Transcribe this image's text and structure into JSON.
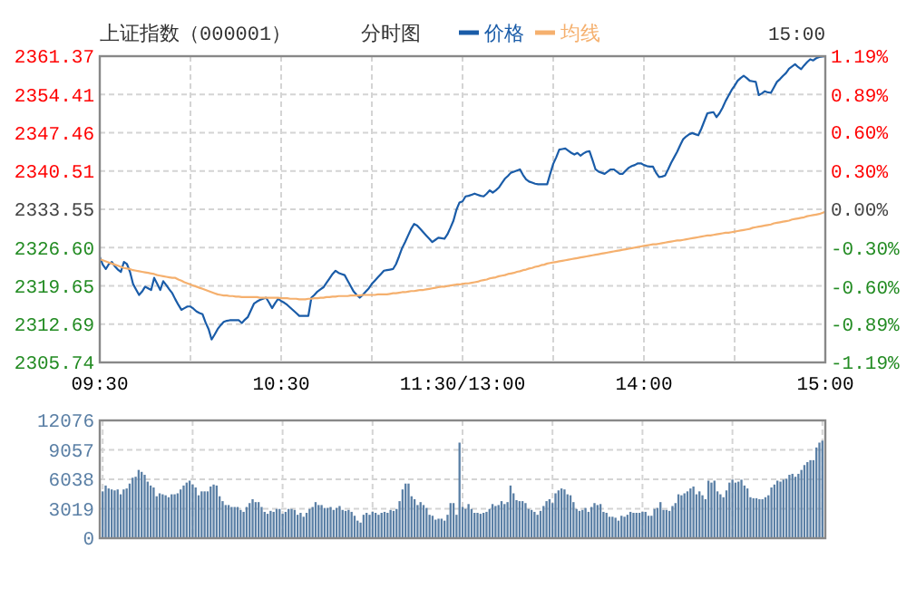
{
  "chart_data": [
    {
      "type": "line",
      "title": "上证指数（000001）",
      "subtitle": "分时图",
      "annotations": [
        "15:00"
      ],
      "legend": "top",
      "grid": true,
      "categories": [
        "09:30",
        null,
        null,
        null,
        null,
        null,
        null,
        null,
        null,
        null,
        null,
        null,
        null,
        null,
        null,
        null,
        null,
        null,
        null,
        null,
        null,
        null,
        null,
        null,
        null,
        null,
        null,
        null,
        null,
        null,
        null,
        null,
        null,
        null,
        null,
        null,
        null,
        null,
        null,
        null,
        null,
        null,
        null,
        null,
        null,
        null,
        null,
        null,
        null,
        null,
        null,
        null,
        null,
        null,
        null,
        null,
        null,
        null,
        null,
        null,
        "10:30",
        null,
        null,
        null,
        null,
        null,
        null,
        null,
        null,
        null,
        null,
        null,
        null,
        null,
        null,
        null,
        null,
        null,
        null,
        null,
        null,
        null,
        null,
        null,
        null,
        null,
        null,
        null,
        null,
        null,
        null,
        null,
        null,
        null,
        null,
        null,
        null,
        null,
        null,
        null,
        null,
        null,
        null,
        null,
        null,
        null,
        null,
        null,
        null,
        null,
        null,
        null,
        null,
        null,
        null,
        null,
        null,
        null,
        null,
        null,
        "11:30/13:00",
        null,
        null,
        null,
        null,
        null,
        null,
        null,
        null,
        null,
        null,
        null,
        null,
        null,
        null,
        null,
        null,
        null,
        null,
        null,
        null,
        null,
        null,
        null,
        null,
        null,
        null,
        null,
        null,
        null,
        null,
        null,
        null,
        null,
        null,
        null,
        null,
        null,
        null,
        null,
        null,
        null,
        null,
        null,
        null,
        null,
        null,
        null,
        null,
        null,
        null,
        null,
        null,
        null,
        null,
        null,
        null,
        null,
        null,
        null,
        "14:00",
        null,
        null,
        null,
        null,
        null,
        null,
        null,
        null,
        null,
        null,
        null,
        null,
        null,
        null,
        null,
        null,
        null,
        null,
        null,
        null,
        null,
        null,
        null,
        null,
        null,
        null,
        null,
        null,
        null,
        null,
        null,
        null,
        null,
        null,
        null,
        null,
        null,
        null,
        null,
        null,
        null,
        null,
        null,
        null,
        null,
        null,
        null,
        null,
        null,
        null,
        null,
        null,
        null,
        null,
        null,
        null,
        null,
        null,
        null,
        "15:00"
      ],
      "ylim": [
        2305.74,
        2361.37
      ],
      "yticks": [
        2305.74,
        2312.69,
        2319.65,
        {
          "value": 2326.6,
          "label": "2326.60"
        },
        2333.55,
        2340.51,
        2347.46,
        2354.41,
        2361.37
      ],
      "y2lim": [
        -1.19,
        1.19
      ],
      "y2ticks": [
        {
          "value": -1.19,
          "label": "-1.19%"
        },
        {
          "value": -0.89,
          "label": "-0.89%"
        },
        {
          "value": -0.6,
          "label": "-0.60%"
        },
        {
          "value": -0.3,
          "label": "-0.30%"
        },
        {
          "value": 0,
          "label": "0.00%"
        },
        {
          "value": 0.3,
          "label": "0.30%"
        },
        {
          "value": 0.6,
          "label": "0.60%"
        },
        {
          "value": 0.89,
          "label": "0.89%"
        },
        {
          "value": 1.19,
          "label": "1.19%"
        }
      ],
      "series": [
        {
          "name": "价格",
          "color": "#1a5ca8",
          "values": [
            2324.9,
            2323.5,
            2322.7,
            2323.6,
            2324.0,
            2323.2,
            2322.6,
            2322.2,
            2324.0,
            2323.6,
            2322.2,
            2320.0,
            2319.0,
            2318.0,
            2318.6,
            2319.5,
            2319.2,
            2318.9,
            2321.1,
            2320.0,
            2318.9,
            2320.5,
            2319.8,
            2319.0,
            2318.3,
            2317.2,
            2316.2,
            2315.3,
            2315.6,
            2315.9,
            2315.9,
            2315.5,
            2315.0,
            2314.7,
            2314.5,
            2313.0,
            2311.8,
            2309.9,
            2310.8,
            2311.8,
            2312.5,
            2313.1,
            2313.3,
            2313.4,
            2313.4,
            2313.4,
            2313.4,
            2312.9,
            2313.5,
            2314.0,
            2315.2,
            2316.4,
            2316.8,
            2317.1,
            2317.3,
            2317.5,
            2316.6,
            2315.6,
            2316.5,
            2317.3,
            2316.9,
            2316.6,
            2316.2,
            2315.7,
            2315.2,
            2314.7,
            2314.2,
            2314.2,
            2314.2,
            2314.2,
            2317.5,
            2318.0,
            2318.6,
            2319.0,
            2319.4,
            2320.2,
            2321.0,
            2321.8,
            2322.4,
            2322.0,
            2321.8,
            2321.6,
            2320.6,
            2319.6,
            2318.6,
            2318.0,
            2317.5,
            2318.0,
            2318.6,
            2319.2,
            2320.0,
            2320.6,
            2321.2,
            2321.8,
            2322.4,
            2322.5,
            2322.6,
            2322.7,
            2323.6,
            2325.0,
            2326.5,
            2327.6,
            2328.8,
            2330.0,
            2330.9,
            2330.6,
            2330.0,
            2329.4,
            2328.8,
            2328.2,
            2327.6,
            2328.0,
            2328.4,
            2328.3,
            2328.2,
            2329.0,
            2330.2,
            2331.5,
            2333.5,
            2334.8,
            2335.0,
            2335.9,
            2336.0,
            2336.2,
            2336.4,
            2336.2,
            2336.0,
            2335.9,
            2336.4,
            2337.0,
            2336.6,
            2337.0,
            2337.5,
            2338.3,
            2339.1,
            2339.6,
            2340.2,
            2340.4,
            2340.6,
            2340.8,
            2339.8,
            2339.0,
            2338.6,
            2338.4,
            2338.2,
            2338.1,
            2338.1,
            2338.1,
            2338.1,
            2340.0,
            2341.8,
            2343.0,
            2344.4,
            2344.5,
            2344.6,
            2344.2,
            2343.8,
            2343.5,
            2343.8,
            2343.3,
            2343.7,
            2344.0,
            2344.1,
            2342.5,
            2340.8,
            2340.4,
            2340.2,
            2340.0,
            2340.4,
            2340.8,
            2340.8,
            2340.4,
            2340.0,
            2340.0,
            2340.6,
            2341.1,
            2341.4,
            2341.6,
            2341.9,
            2341.9,
            2341.6,
            2341.4,
            2341.3,
            2341.3,
            2340.2,
            2339.4,
            2339.5,
            2339.7,
            2340.8,
            2342.0,
            2343.0,
            2344.0,
            2345.2,
            2346.3,
            2346.8,
            2347.2,
            2347.4,
            2347.2,
            2347.0,
            2348.2,
            2349.6,
            2351.0,
            2351.1,
            2351.2,
            2350.3,
            2351.0,
            2352.0,
            2353.2,
            2354.2,
            2355.2,
            2356.0,
            2356.9,
            2357.4,
            2357.8,
            2357.4,
            2356.9,
            2356.8,
            2356.7,
            2354.3,
            2354.6,
            2355.0,
            2354.8,
            2354.7,
            2355.7,
            2356.7,
            2357.2,
            2357.8,
            2358.3,
            2359.1,
            2359.5,
            2359.9,
            2359.4,
            2359.0,
            2359.7,
            2360.3,
            2360.8,
            2360.6,
            2361.0,
            2361.2,
            2361.3,
            2361.37
          ]
        },
        {
          "name": "均线",
          "color": "#f5b06e",
          "values": [
            2324.5,
            2324.3,
            2324.1,
            2323.9,
            2323.7,
            2323.5,
            2323.3,
            2323.1,
            2322.9,
            2322.8,
            2322.7,
            2322.5,
            2322.4,
            2322.3,
            2322.2,
            2322.1,
            2322.0,
            2321.9,
            2321.8,
            2321.6,
            2321.5,
            2321.4,
            2321.3,
            2321.2,
            2321.1,
            2321.1,
            2320.8,
            2320.6,
            2320.3,
            2320.1,
            2319.9,
            2319.7,
            2319.5,
            2319.3,
            2319.1,
            2318.9,
            2318.7,
            2318.5,
            2318.3,
            2318.1,
            2318.0,
            2317.9,
            2317.9,
            2317.8,
            2317.8,
            2317.7,
            2317.7,
            2317.6,
            2317.6,
            2317.6,
            2317.6,
            2317.6,
            2317.6,
            2317.5,
            2317.5,
            2317.5,
            2317.5,
            2317.5,
            2317.5,
            2317.5,
            2317.4,
            2317.4,
            2317.4,
            2317.3,
            2317.3,
            2317.3,
            2317.2,
            2317.2,
            2317.2,
            2317.3,
            2317.3,
            2317.4,
            2317.4,
            2317.5,
            2317.5,
            2317.6,
            2317.6,
            2317.7,
            2317.7,
            2317.8,
            2317.8,
            2317.8,
            2317.8,
            2317.9,
            2317.9,
            2317.9,
            2317.9,
            2318.0,
            2318.0,
            2318.0,
            2318.0,
            2318.0,
            2318.1,
            2318.1,
            2318.1,
            2318.1,
            2318.2,
            2318.3,
            2318.3,
            2318.4,
            2318.5,
            2318.5,
            2318.6,
            2318.7,
            2318.7,
            2318.8,
            2318.9,
            2318.9,
            2319.0,
            2319.1,
            2319.2,
            2319.3,
            2319.4,
            2319.5,
            2319.5,
            2319.6,
            2319.7,
            2319.8,
            2319.9,
            2319.9,
            2320.0,
            2320.1,
            2320.1,
            2320.2,
            2320.3,
            2320.4,
            2320.6,
            2320.7,
            2320.8,
            2321.0,
            2321.1,
            2321.2,
            2321.4,
            2321.5,
            2321.6,
            2321.8,
            2321.9,
            2322.0,
            2322.2,
            2322.3,
            2322.5,
            2322.6,
            2322.8,
            2322.9,
            2323.1,
            2323.2,
            2323.4,
            2323.5,
            2323.7,
            2323.8,
            2323.9,
            2324.0,
            2324.1,
            2324.2,
            2324.3,
            2324.4,
            2324.5,
            2324.6,
            2324.7,
            2324.8,
            2324.9,
            2325.0,
            2325.1,
            2325.2,
            2325.3,
            2325.4,
            2325.5,
            2325.6,
            2325.7,
            2325.8,
            2325.9,
            2326.0,
            2326.1,
            2326.2,
            2326.3,
            2326.4,
            2326.5,
            2326.6,
            2326.7,
            2326.8,
            2326.9,
            2327.0,
            2327.1,
            2327.2,
            2327.2,
            2327.3,
            2327.4,
            2327.5,
            2327.6,
            2327.7,
            2327.8,
            2327.9,
            2327.9,
            2328.0,
            2328.1,
            2328.2,
            2328.3,
            2328.4,
            2328.5,
            2328.6,
            2328.7,
            2328.8,
            2328.8,
            2328.9,
            2329.0,
            2329.1,
            2329.2,
            2329.3,
            2329.3,
            2329.4,
            2329.5,
            2329.6,
            2329.7,
            2329.8,
            2329.9,
            2330.0,
            2330.2,
            2330.3,
            2330.4,
            2330.5,
            2330.6,
            2330.7,
            2330.8,
            2331.0,
            2331.1,
            2331.2,
            2331.3,
            2331.4,
            2331.5,
            2331.7,
            2331.8,
            2331.9,
            2332.0,
            2332.1,
            2332.3,
            2332.4,
            2332.5,
            2332.6,
            2332.7,
            2332.9,
            2333.1
          ]
        }
      ]
    },
    {
      "type": "bar",
      "grid": true,
      "tick_labels": "y",
      "categories": [
        null,
        null,
        null,
        null,
        null,
        null,
        null,
        null,
        null,
        null,
        null,
        null,
        null,
        null,
        null,
        null,
        null,
        null,
        null,
        null,
        null,
        null,
        null,
        null,
        null,
        null,
        null,
        null,
        null,
        null,
        null,
        null,
        null,
        null,
        null,
        null,
        null,
        null,
        null,
        null,
        null,
        null,
        null,
        null,
        null,
        null,
        null,
        null,
        null,
        null,
        null,
        null,
        null,
        null,
        null,
        null,
        null,
        null,
        null,
        null,
        null,
        null,
        null,
        null,
        null,
        null,
        null,
        null,
        null,
        null,
        null,
        null,
        null,
        null,
        null,
        null,
        null,
        null,
        null,
        null,
        null,
        null,
        null,
        null,
        null,
        null,
        null,
        null,
        null,
        null,
        null,
        null,
        null,
        null,
        null,
        null,
        null,
        null,
        null,
        null,
        null,
        null,
        null,
        null,
        null,
        null,
        null,
        null,
        null,
        null,
        null,
        null,
        null,
        null,
        null,
        null,
        null,
        null,
        null,
        null,
        null,
        null,
        null,
        null,
        null,
        null,
        null,
        null,
        null,
        null,
        null,
        null,
        null,
        null,
        null,
        null,
        null,
        null,
        null,
        null,
        null,
        null,
        null,
        null,
        null,
        null,
        null,
        null,
        null,
        null,
        null,
        null,
        null,
        null,
        null,
        null,
        null,
        null,
        null,
        null,
        null,
        null,
        null,
        null,
        null,
        null,
        null,
        null,
        null,
        null,
        null,
        null,
        null,
        null,
        null,
        null,
        null,
        null,
        null,
        null,
        null,
        null,
        null,
        null,
        null,
        null,
        null,
        null,
        null,
        null,
        null,
        null,
        null,
        null,
        null,
        null,
        null,
        null,
        null,
        null,
        null,
        null,
        null,
        null,
        null,
        null,
        null,
        null,
        null,
        null,
        null,
        null,
        null,
        null,
        null,
        null,
        null,
        null,
        null,
        null,
        null,
        null,
        null,
        null,
        null,
        null,
        null,
        null,
        null,
        null,
        null,
        null,
        null,
        null,
        null,
        null,
        null,
        null,
        null,
        null,
        null
      ],
      "ylim": [
        0,
        12076
      ],
      "yticks": [
        0,
        3019,
        6038,
        9057,
        12076
      ],
      "series": [
        {
          "color": "#5a7fa5",
          "values": [
            4800,
            5400,
            5100,
            5000,
            4900,
            5000,
            4500,
            5000,
            5100,
            5600,
            6200,
            6300,
            7000,
            6800,
            6500,
            5800,
            5400,
            5200,
            4300,
            4600,
            4500,
            4400,
            4200,
            4500,
            4500,
            4600,
            5000,
            5400,
            5700,
            5900,
            5500,
            5200,
            4400,
            4800,
            4800,
            4800,
            5300,
            5500,
            5400,
            4300,
            3800,
            3400,
            3400,
            3200,
            3200,
            3200,
            2900,
            2700,
            3200,
            3600,
            4000,
            3700,
            3700,
            3200,
            2700,
            2500,
            2800,
            2700,
            3000,
            3000,
            2500,
            2700,
            3000,
            3000,
            2900,
            2400,
            2600,
            2200,
            2600,
            3000,
            3200,
            3700,
            3400,
            3400,
            3100,
            3100,
            3200,
            2900,
            3100,
            3300,
            2900,
            2800,
            2900,
            2700,
            2300,
            1800,
            1600,
            2400,
            2600,
            2400,
            2700,
            2600,
            2400,
            2600,
            2700,
            2600,
            2900,
            2800,
            3000,
            3800,
            5000,
            5600,
            5600,
            4300,
            4000,
            3400,
            3700,
            3400,
            3100,
            2400,
            2300,
            1900,
            2000,
            2000,
            1800,
            2400,
            3600,
            3600,
            2400,
            9800,
            3200,
            3000,
            3500,
            3000,
            2600,
            2600,
            2500,
            2600,
            2700,
            3000,
            3500,
            3300,
            3400,
            3800,
            3500,
            3700,
            5400,
            4600,
            3900,
            3800,
            3800,
            3600,
            3000,
            2900,
            2700,
            2400,
            2800,
            3300,
            3800,
            4000,
            3600,
            4600,
            4900,
            5100,
            5000,
            4500,
            4400,
            3700,
            3000,
            2800,
            2900,
            3100,
            2700,
            3200,
            3600,
            3400,
            3500,
            2700,
            2600,
            2200,
            2200,
            2100,
            1800,
            2300,
            2200,
            2400,
            2700,
            2600,
            2600,
            2600,
            2700,
            2700,
            2300,
            2300,
            3000,
            3100,
            3700,
            2900,
            2900,
            2800,
            3300,
            3600,
            4500,
            4400,
            4600,
            4800,
            5100,
            5300,
            4500,
            4800,
            4400,
            4000,
            5900,
            5700,
            5900,
            4800,
            4500,
            4200,
            4900,
            5700,
            6000,
            5700,
            5800,
            6000,
            5400,
            5100,
            4200,
            4100,
            4100,
            4000,
            4000,
            4200,
            4400,
            5200,
            5500,
            5900,
            5800,
            6000,
            6100,
            6500,
            6600,
            6300,
            6600,
            7000,
            7500,
            7800,
            8000,
            8000,
            9300,
            9800,
            10000
          ]
        }
      ]
    }
  ]
}
